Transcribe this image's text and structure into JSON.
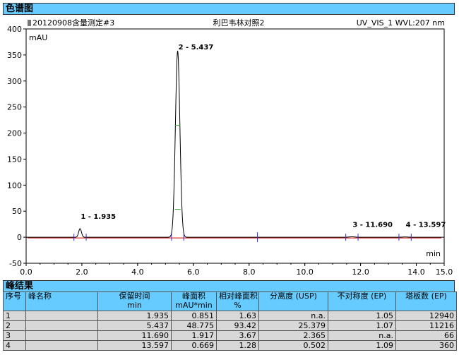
{
  "sections": {
    "chromatogram_title": "色谱图",
    "peak_results_title": "峰结果"
  },
  "chart_header": {
    "left": "20120908含量测定#3",
    "center": "利巴韦林对照2",
    "right": "UV_VIS_1 WVL:207 nm"
  },
  "chart_data": {
    "type": "line",
    "ylabel": "mAU",
    "xlabel": "min",
    "xlim": [
      0.0,
      15.0
    ],
    "ylim": [
      -50,
      400
    ],
    "xticks": [
      "0.0",
      "2.0",
      "4.0",
      "6.0",
      "8.0",
      "10.0",
      "12.0",
      "14.0",
      "15.0"
    ],
    "yticks": [
      "-50",
      "0",
      "50",
      "100",
      "150",
      "200",
      "250",
      "300",
      "350",
      "400"
    ],
    "trace_color": "#000000",
    "baseline_color": "#cc0000",
    "peaks": [
      {
        "label": "1 - 1.935",
        "rt": 1.935,
        "height": 16.5,
        "width": 0.05
      },
      {
        "label": "2 - 5.437",
        "rt": 5.437,
        "height": 358.0,
        "width": 0.08
      },
      {
        "label": "3 - 11.690",
        "rt": 11.69,
        "height": 0.8,
        "width": 0.1
      },
      {
        "label": "4 - 13.597",
        "rt": 13.597,
        "height": 0.5,
        "width": 0.1
      }
    ]
  },
  "table": {
    "header_top": [
      "序号",
      "峰名称",
      "保留时间",
      "峰面积",
      "相对峰面积",
      "分离度 (USP)",
      "不对称度 (EP)",
      "塔板数 (EP)"
    ],
    "header_units": [
      "",
      "",
      "min",
      "mAU*min",
      "%",
      "",
      "",
      ""
    ],
    "rows": [
      [
        "1",
        "",
        "1.935",
        "0.851",
        "1.63",
        "n.a.",
        "1.05",
        "12940"
      ],
      [
        "2",
        "",
        "5.437",
        "48.775",
        "93.42",
        "25.379",
        "1.07",
        "11216"
      ],
      [
        "3",
        "",
        "11.690",
        "1.917",
        "3.67",
        "2.365",
        "n.a.",
        "66"
      ],
      [
        "4",
        "",
        "13.597",
        "0.669",
        "1.28",
        "0.502",
        "1.09",
        "360"
      ]
    ]
  }
}
